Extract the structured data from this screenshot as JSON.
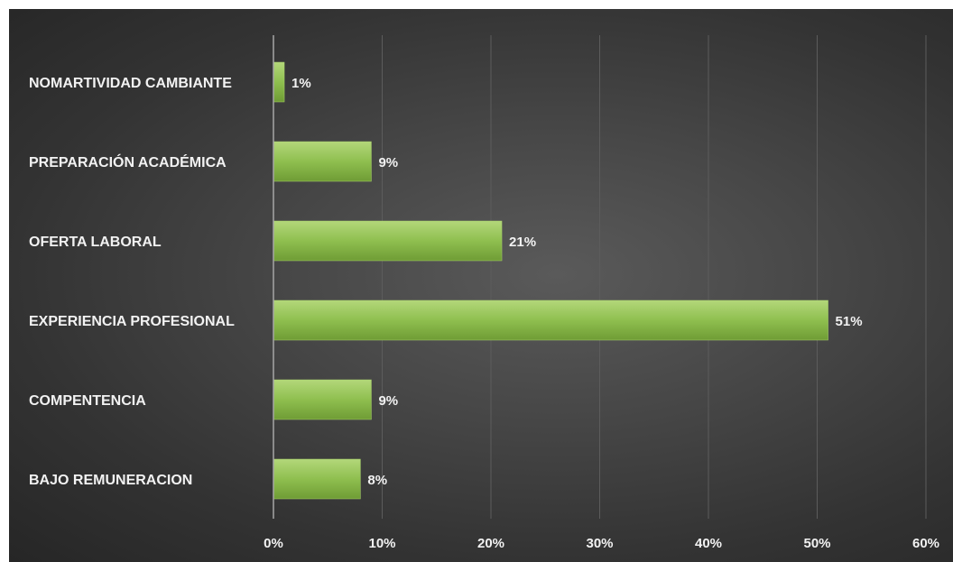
{
  "chart_data": {
    "type": "bar",
    "orientation": "horizontal",
    "categories": [
      "NOMARTIVIDAD CAMBIANTE",
      "PREPARACIÓN ACADÉMICA",
      "OFERTA LABORAL",
      "EXPERIENCIA PROFESIONAL",
      "COMPENTENCIA",
      "BAJO REMUNERACION"
    ],
    "values": [
      1,
      9,
      21,
      51,
      9,
      8
    ],
    "value_labels": [
      "1%",
      "9%",
      "21%",
      "51%",
      "9%",
      "8%"
    ],
    "title": "",
    "xlabel": "",
    "ylabel": "",
    "xlim": [
      0,
      60
    ],
    "x_ticks": [
      0,
      10,
      20,
      30,
      40,
      50,
      60
    ],
    "x_tick_labels": [
      "0%",
      "10%",
      "20%",
      "30%",
      "40%",
      "50%",
      "60%"
    ],
    "grid": "vertical",
    "legend": "none",
    "bar_color": "#8fbf4f",
    "background_color": "#3d3d3d"
  }
}
